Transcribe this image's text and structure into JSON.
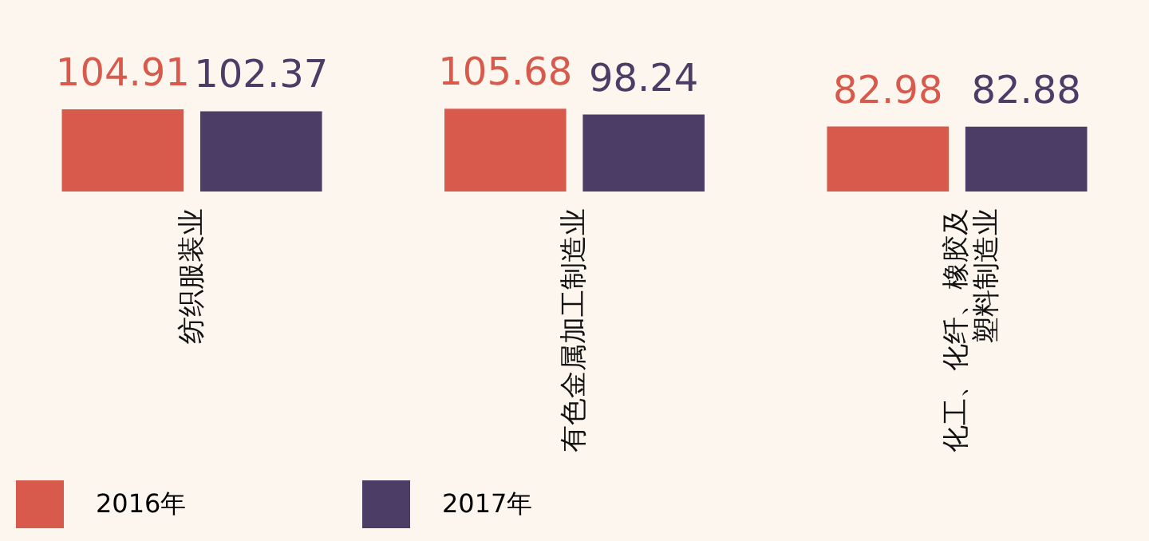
{
  "chart_data": {
    "type": "bar",
    "categories": [
      "纺织服装业",
      "有色金属加工制造业",
      "化工、化纤、橡胶及塑料制造业"
    ],
    "series": [
      {
        "name": "2016年",
        "color": "#d85a4c",
        "values": [
          104.91,
          105.68,
          82.98
        ]
      },
      {
        "name": "2017年",
        "color": "#4b3d66",
        "values": [
          102.37,
          98.24,
          82.88
        ]
      }
    ],
    "data_labels": true,
    "legend": "bottom",
    "grid": false
  }
}
